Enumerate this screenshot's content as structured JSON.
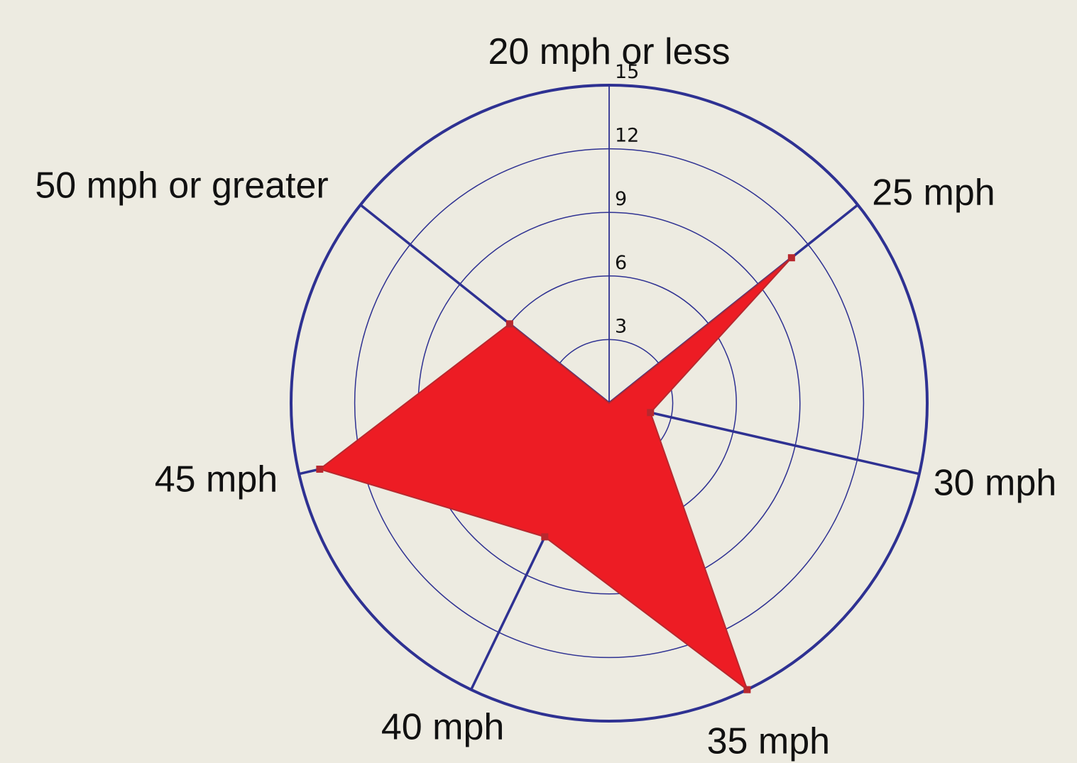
{
  "chart_data": {
    "type": "radar",
    "categories": [
      "20 mph or less",
      "25 mph",
      "30 mph",
      "35 mph",
      "40 mph",
      "45 mph",
      "50 mph or greater"
    ],
    "series": [
      {
        "values": [
          0,
          11,
          2,
          15,
          7,
          14,
          6
        ]
      }
    ],
    "rlim": [
      0,
      15
    ],
    "rticks": [
      "3",
      "6",
      "9",
      "12",
      "15"
    ],
    "grid": true,
    "colors": {
      "background": "#edebe1",
      "grid": "#2e3192",
      "fill": "#ed1c24",
      "edge": "#b8282e"
    }
  }
}
